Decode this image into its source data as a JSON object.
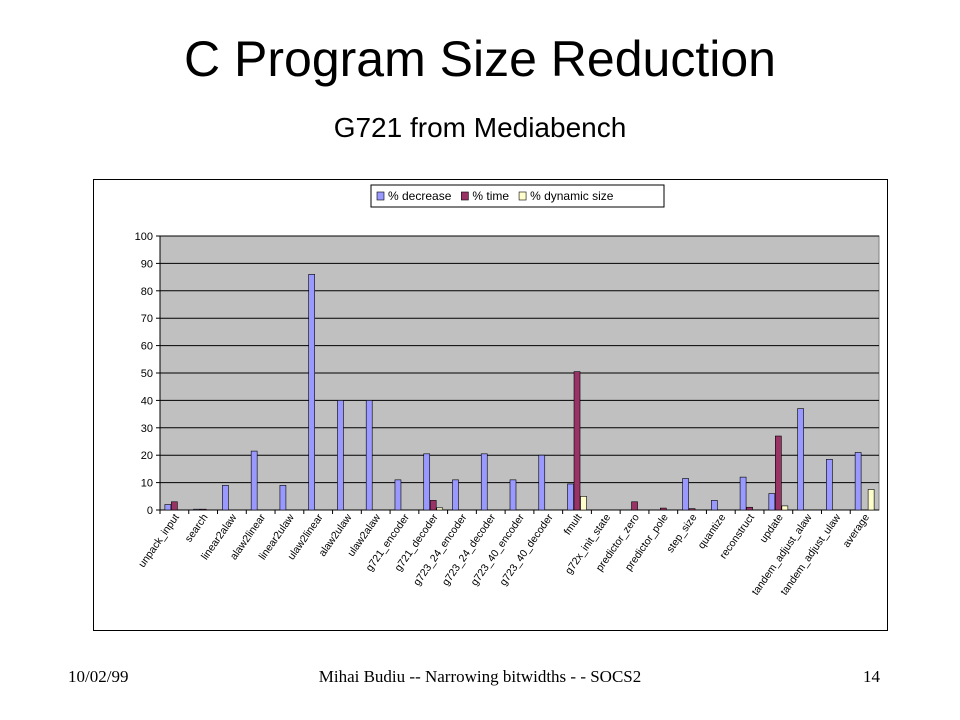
{
  "slide": {
    "title": "C Program Size Reduction",
    "subtitle": "G721 from Mediabench",
    "footer_date": "10/02/99",
    "footer_center": "Mihai Budiu -- Narrowing bitwidths - - SOCS2",
    "page_number": "14"
  },
  "colors": {
    "decrease": "#9999ff",
    "time": "#993366",
    "dynamic_size": "#ffffcc",
    "plot_bg": "#c0c0c0"
  },
  "chart_data": {
    "type": "bar",
    "title": "",
    "xlabel": "",
    "ylabel": "",
    "ylim": [
      0,
      100
    ],
    "yticks": [
      0,
      10,
      20,
      30,
      40,
      50,
      60,
      70,
      80,
      90,
      100
    ],
    "grid": true,
    "legend_position": "top",
    "categories": [
      "unpack_input",
      "search",
      "linear2alaw",
      "alaw2linear",
      "linear2ulaw",
      "ulaw2linear",
      "alaw2ulaw",
      "ulaw2alaw",
      "g721_encoder",
      "g721_decoder",
      "g723_24_encoder",
      "g723_24_decoder",
      "g723_40_encoder",
      "g723_40_decoder",
      "fmult",
      "g72x_init_state",
      "predictor_zero",
      "predictor_pole",
      "step_size",
      "quantize",
      "reconstruct",
      "update",
      "tandem_adjust_alaw",
      "tandem_adjust_ulaw",
      "average"
    ],
    "series": [
      {
        "name": "% decrease",
        "values": [
          2,
          0.3,
          9,
          21.5,
          9,
          86,
          40,
          40,
          11,
          20.5,
          11,
          20.5,
          11,
          20,
          9.5,
          0,
          0,
          0,
          11.5,
          3.5,
          12,
          6,
          37,
          18.5,
          21
        ]
      },
      {
        "name": "% time",
        "values": [
          3,
          0.3,
          0,
          0,
          0,
          0,
          0,
          0,
          0,
          3.5,
          0,
          0,
          0,
          0,
          50.5,
          0,
          3,
          0.7,
          0.5,
          0,
          1,
          27,
          0,
          0,
          0
        ]
      },
      {
        "name": "% dynamic size",
        "values": [
          0,
          0,
          0,
          0,
          0,
          0,
          0,
          0,
          0,
          0.8,
          0,
          0,
          0,
          0,
          5,
          0,
          0,
          0,
          0,
          0,
          0,
          1.5,
          0,
          0,
          7.5
        ]
      }
    ]
  }
}
